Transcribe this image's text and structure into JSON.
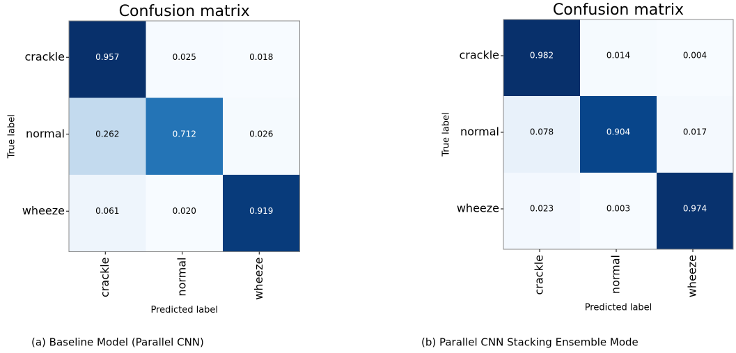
{
  "chart_data": [
    {
      "type": "heatmap",
      "title": "Confusion matrix",
      "x_label": "Predicted label",
      "y_label": "True label",
      "x_categories": [
        "crackle",
        "normal",
        "wheeze"
      ],
      "y_categories": [
        "crackle",
        "normal",
        "wheeze"
      ],
      "colormap": "Blues",
      "values": [
        [
          0.957,
          0.025,
          0.018
        ],
        [
          0.262,
          0.712,
          0.026
        ],
        [
          0.061,
          0.02,
          0.919
        ]
      ],
      "value_labels": [
        [
          "0.957",
          "0.025",
          "0.018"
        ],
        [
          "0.262",
          "0.712",
          "0.026"
        ],
        [
          "0.061",
          "0.020",
          "0.919"
        ]
      ],
      "caption": "(a) Baseline Model (Parallel CNN)"
    },
    {
      "type": "heatmap",
      "title": "Confusion matrix",
      "x_label": "Predicted label",
      "y_label": "True label",
      "x_categories": [
        "crackle",
        "normal",
        "wheeze"
      ],
      "y_categories": [
        "crackle",
        "normal",
        "wheeze"
      ],
      "colormap": "Blues",
      "values": [
        [
          0.982,
          0.014,
          0.004
        ],
        [
          0.078,
          0.904,
          0.017
        ],
        [
          0.023,
          0.003,
          0.974
        ]
      ],
      "value_labels": [
        [
          "0.982",
          "0.014",
          "0.004"
        ],
        [
          "0.078",
          "0.904",
          "0.017"
        ],
        [
          "0.023",
          "0.003",
          "0.974"
        ]
      ],
      "caption": "(b) Parallel CNN Stacking Ensemble Mode"
    }
  ]
}
